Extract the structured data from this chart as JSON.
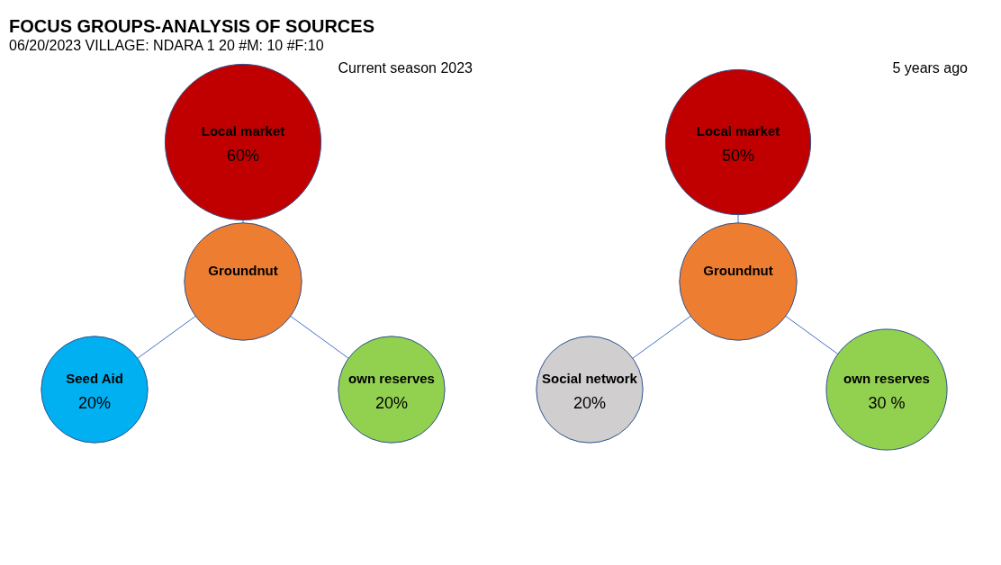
{
  "chart_data": [
    {
      "type": "other",
      "title": "FOCUS GROUPS-ANALYSIS OF SOURCES",
      "subtitle": "06/20/2023 VILLAGE: NDARA 1 20 #M: 10 #F:10",
      "annotations": [
        "Current season 2023"
      ],
      "categories": [
        "Groundnut",
        "Local market",
        "Seed Aid",
        "own reserves"
      ],
      "values": [
        null,
        60,
        20,
        20
      ],
      "value_labels": [
        null,
        "60%",
        "20%",
        "20%"
      ],
      "colors": [
        "#ed7d31",
        "#c00000",
        "#00b0f0",
        "#92d050"
      ]
    },
    {
      "type": "other",
      "annotations": [
        "5 years ago"
      ],
      "categories": [
        "Groundnut",
        "Local market",
        "Social network",
        "own reserves"
      ],
      "values": [
        null,
        50,
        20,
        30
      ],
      "value_labels": [
        null,
        "50%",
        "20%",
        "30 %"
      ],
      "colors": [
        "#ed7d31",
        "#c00000",
        "#d0cece",
        "#92d050"
      ]
    }
  ]
}
